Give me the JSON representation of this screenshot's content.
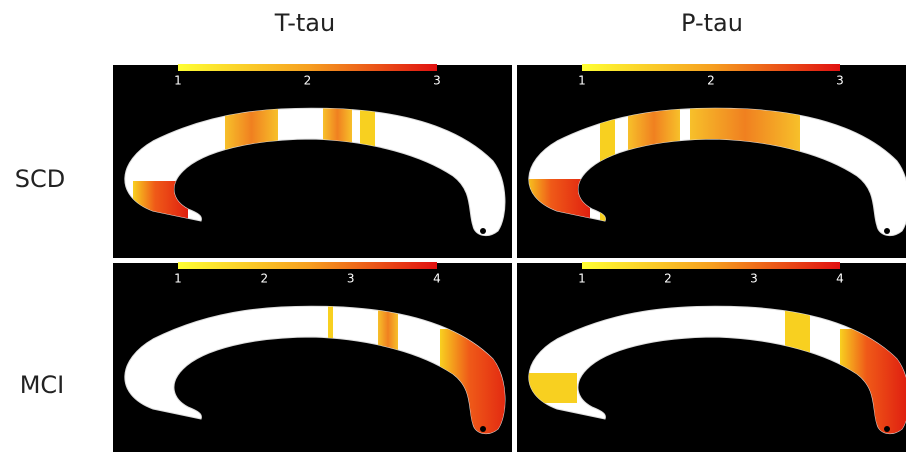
{
  "columns": [
    "T-tau",
    "P-tau"
  ],
  "rows": [
    "SCD",
    "MCI"
  ],
  "panels": [
    {
      "colorbar_ticks": [
        1,
        2,
        3
      ]
    },
    {
      "colorbar_ticks": [
        1,
        2,
        3
      ]
    },
    {
      "colorbar_ticks": [
        1,
        2,
        3,
        4
      ]
    },
    {
      "colorbar_ticks": [
        1,
        2,
        3,
        4
      ]
    }
  ]
}
